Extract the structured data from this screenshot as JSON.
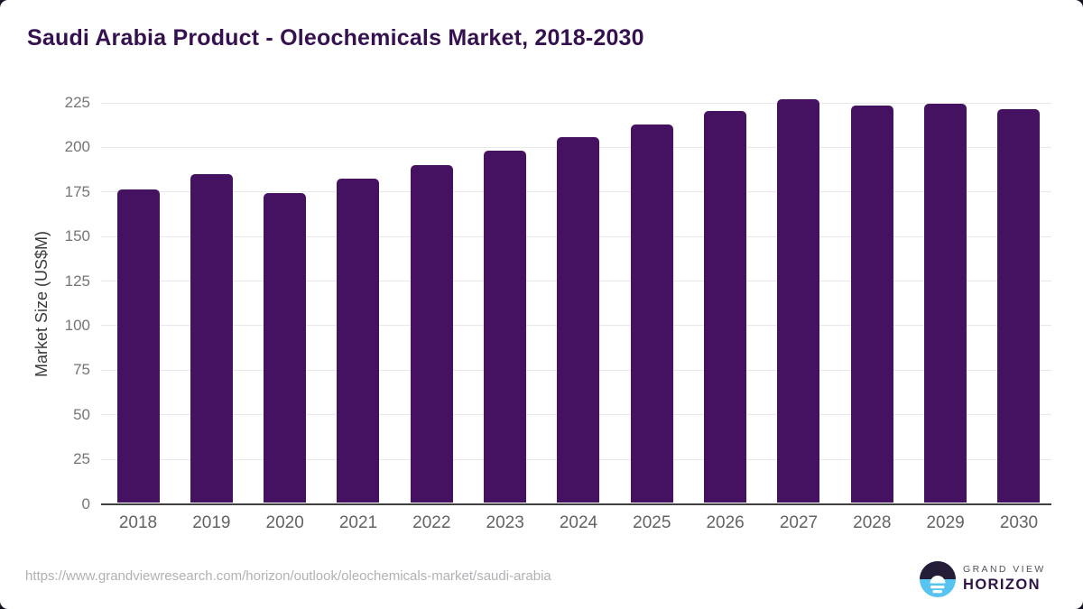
{
  "header": {
    "title": "Saudi Arabia Product - Oleochemicals Market, 2018-2030"
  },
  "chart_data": {
    "type": "bar",
    "title": "Saudi Arabia Product - Oleochemicals Market, 2018-2030",
    "categories": [
      "2018",
      "2019",
      "2020",
      "2021",
      "2022",
      "2023",
      "2024",
      "2025",
      "2026",
      "2027",
      "2028",
      "2029",
      "2030"
    ],
    "values": [
      176,
      184.5,
      174,
      182,
      189.5,
      197.5,
      205.5,
      212.5,
      220,
      226.5,
      223,
      224,
      221
    ],
    "series": [
      {
        "name": "Market Size (US$M)",
        "values": [
          176,
          184.5,
          174,
          182,
          189.5,
          197.5,
          205.5,
          212.5,
          220,
          226.5,
          223,
          224,
          221
        ]
      }
    ],
    "xlabel": "",
    "ylabel": "Market Size (US$M)",
    "ylim": [
      0,
      225
    ],
    "yticks": [
      0,
      25,
      50,
      75,
      100,
      125,
      150,
      175,
      200,
      225
    ],
    "grid": "horizontal",
    "legend": "none",
    "bar_color": "#451161"
  },
  "footer": {
    "source_url": "https://www.grandviewresearch.com/horizon/outlook/oleochemicals-market/saudi-arabia",
    "brand": {
      "line1": "GRAND VIEW",
      "line2": "HORIZON"
    }
  },
  "colors": {
    "bar": "#451161",
    "title": "#35124f",
    "axis_line": "#404040",
    "gridline": "#e8e8e8",
    "tick_label": "#757575",
    "year_label": "#636363",
    "axis_title": "#3a3a3a",
    "url_text": "#b3b0b5",
    "logo_dark": "#251c38",
    "logo_blue": "#57c3f0",
    "brand_line1": "#55505a",
    "brand_line2": "#2e1547",
    "card_background": "#ffffff",
    "page_corner": "#171321"
  }
}
